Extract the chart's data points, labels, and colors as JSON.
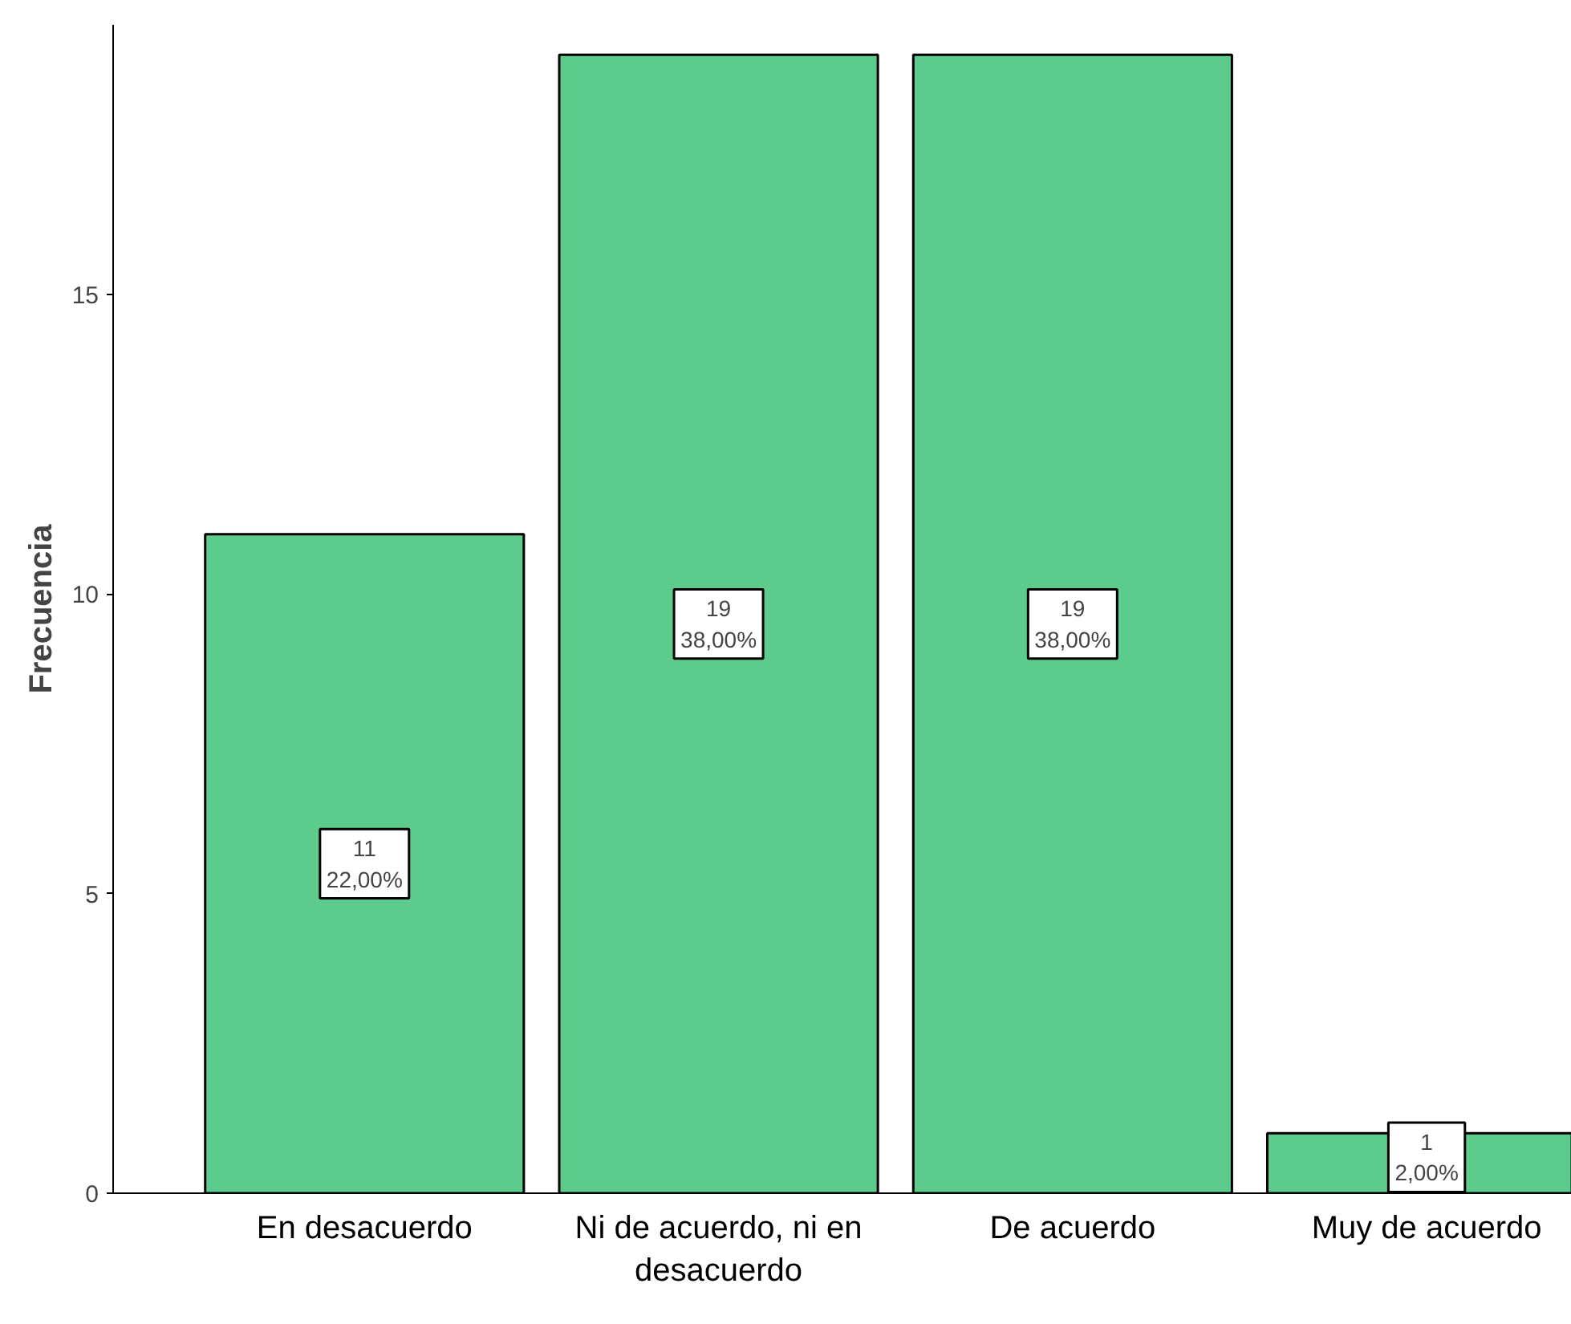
{
  "chart_data": {
    "type": "bar",
    "ylabel": "Frecuencia",
    "categories": [
      "En desacuerdo",
      "Ni de acuerdo, ni en desacuerdo",
      "De acuerdo",
      "Muy de acuerdo"
    ],
    "values": [
      11,
      19,
      19,
      1
    ],
    "value_labels": [
      "11\n22,00%",
      "19\n38,00%",
      "19\n38,00%",
      "1\n2,00%"
    ],
    "color": "#5ccb8b",
    "ylim": [
      0,
      19.5
    ],
    "yticks": [
      0,
      5,
      10,
      15
    ],
    "grid": false
  }
}
